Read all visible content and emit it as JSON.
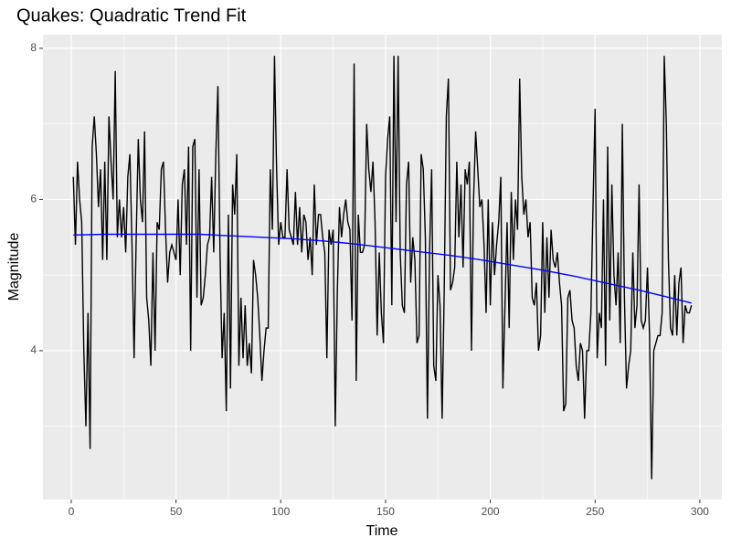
{
  "chart_data": {
    "type": "line",
    "title": "Quakes: Quadratic Trend Fit",
    "x_label": "Time",
    "y_label": "Magnitude",
    "xlim": [
      -13.5,
      310.5
    ],
    "ylim": [
      2.03,
      8.18
    ],
    "xticks": [
      0,
      50,
      100,
      150,
      200,
      250,
      300
    ],
    "yticks": [
      4,
      6,
      8
    ],
    "grid": true,
    "series": [
      {
        "color": "#000000",
        "x": [
          1,
          2,
          3,
          4,
          5,
          6,
          7,
          8,
          9,
          10,
          11,
          12,
          13,
          14,
          15,
          16,
          17,
          18,
          19,
          20,
          21,
          22,
          23,
          24,
          25,
          26,
          27,
          28,
          29,
          30,
          31,
          32,
          33,
          34,
          35,
          36,
          37,
          38,
          39,
          40,
          41,
          42,
          43,
          44,
          45,
          46,
          47,
          48,
          49,
          50,
          51,
          52,
          53,
          54,
          55,
          56,
          57,
          58,
          59,
          60,
          61,
          62,
          63,
          64,
          65,
          66,
          67,
          68,
          69,
          70,
          71,
          72,
          73,
          74,
          75,
          76,
          77,
          78,
          79,
          80,
          81,
          82,
          83,
          84,
          85,
          86,
          87,
          88,
          89,
          90,
          91,
          92,
          93,
          94,
          95,
          96,
          97,
          98,
          99,
          100,
          101,
          102,
          103,
          104,
          105,
          106,
          107,
          108,
          109,
          110,
          111,
          112,
          113,
          114,
          115,
          116,
          117,
          118,
          119,
          120,
          121,
          122,
          123,
          124,
          125,
          126,
          127,
          128,
          129,
          130,
          131,
          132,
          133,
          134,
          135,
          136,
          137,
          138,
          139,
          140,
          141,
          142,
          143,
          144,
          145,
          146,
          147,
          148,
          149,
          150,
          151,
          152,
          153,
          154,
          155,
          156,
          157,
          158,
          159,
          160,
          161,
          162,
          163,
          164,
          165,
          166,
          167,
          168,
          169,
          170,
          171,
          172,
          173,
          174,
          175,
          176,
          177,
          178,
          179,
          180,
          181,
          182,
          183,
          184,
          185,
          186,
          187,
          188,
          189,
          190,
          191,
          192,
          193,
          194,
          195,
          196,
          197,
          198,
          199,
          200,
          201,
          202,
          203,
          204,
          205,
          206,
          207,
          208,
          209,
          210,
          211,
          212,
          213,
          214,
          215,
          216,
          217,
          218,
          219,
          220,
          221,
          222,
          223,
          224,
          225,
          226,
          227,
          228,
          229,
          230,
          231,
          232,
          233,
          234,
          235,
          236,
          237,
          238,
          239,
          240,
          241,
          242,
          243,
          244,
          245,
          246,
          247,
          248,
          249,
          250,
          251,
          252,
          253,
          254,
          255,
          256,
          257,
          258,
          259,
          260,
          261,
          262,
          263,
          264,
          265,
          266,
          267,
          268,
          269,
          270,
          271,
          272,
          273,
          274,
          275,
          276,
          277,
          278,
          279,
          280,
          281,
          282,
          283,
          284,
          285,
          286,
          287,
          288,
          289,
          290,
          291,
          292,
          293,
          294,
          295,
          296
        ],
        "values": [
          6.3,
          5.4,
          6.5,
          6.0,
          5.7,
          4.0,
          3.0,
          4.5,
          2.7,
          6.7,
          7.1,
          6.6,
          5.9,
          6.4,
          5.2,
          6.5,
          5.2,
          7.1,
          6.5,
          6.0,
          7.7,
          5.5,
          6.0,
          5.5,
          5.9,
          5.3,
          6.3,
          6.6,
          5.4,
          3.9,
          5.5,
          6.8,
          6.0,
          5.7,
          6.9,
          4.7,
          4.4,
          3.8,
          5.3,
          4.0,
          5.7,
          5.6,
          6.4,
          6.5,
          5.6,
          4.9,
          5.3,
          5.4,
          5.3,
          5.2,
          6.0,
          5.0,
          6.2,
          6.4,
          5.4,
          6.7,
          4.0,
          6.7,
          6.8,
          4.7,
          6.4,
          4.6,
          4.7,
          5.0,
          5.4,
          5.5,
          6.3,
          5.3,
          6.6,
          7.5,
          5.3,
          3.9,
          4.5,
          3.2,
          5.8,
          3.5,
          6.2,
          5.8,
          6.6,
          3.8,
          4.7,
          3.9,
          4.6,
          3.8,
          4.1,
          3.7,
          5.2,
          5.0,
          4.7,
          4.2,
          3.6,
          4.0,
          4.3,
          4.3,
          6.4,
          5.6,
          7.9,
          6.4,
          5.4,
          5.7,
          5.5,
          5.5,
          6.4,
          5.6,
          5.5,
          5.4,
          6.1,
          5.4,
          5.9,
          5.3,
          5.8,
          5.7,
          5.2,
          5.5,
          5.0,
          6.2,
          5.4,
          5.8,
          5.8,
          5.5,
          5.3,
          3.9,
          5.6,
          5.4,
          5.6,
          3.0,
          4.8,
          5.9,
          5.5,
          5.8,
          6.0,
          5.7,
          5.6,
          4.4,
          7.8,
          3.6,
          5.8,
          5.3,
          5.3,
          5.4,
          7.0,
          6.4,
          6.1,
          6.5,
          5.7,
          4.2,
          5.3,
          4.5,
          4.1,
          6.3,
          6.8,
          7.1,
          4.6,
          7.9,
          5.7,
          7.9,
          5.3,
          4.6,
          4.5,
          6.2,
          6.5,
          4.9,
          5.5,
          5.2,
          4.1,
          4.2,
          6.6,
          6.4,
          5.5,
          3.1,
          5.3,
          6.4,
          3.8,
          3.6,
          5.0,
          4.6,
          3.1,
          4.8,
          7.1,
          7.6,
          4.8,
          4.9,
          5.1,
          6.5,
          5.5,
          6.2,
          5.1,
          6.4,
          6.2,
          6.5,
          4.0,
          6.0,
          6.9,
          6.4,
          5.9,
          6.0,
          5.4,
          4.5,
          6.0,
          4.6,
          5.7,
          5.0,
          5.4,
          5.7,
          6.3,
          3.5,
          4.6,
          5.7,
          4.3,
          6.1,
          5.2,
          6.0,
          5.6,
          7.6,
          6.3,
          5.8,
          6.0,
          5.5,
          5.7,
          4.7,
          4.6,
          4.9,
          4.0,
          4.2,
          5.7,
          4.5,
          5.5,
          4.7,
          5.6,
          5.2,
          5.1,
          5.3,
          4.9,
          4.6,
          3.2,
          3.3,
          4.7,
          4.8,
          4.4,
          4.3,
          3.8,
          3.6,
          4.1,
          4.0,
          3.1,
          4.0,
          4.0,
          4.5,
          5.9,
          7.2,
          3.9,
          4.5,
          4.3,
          6.0,
          3.8,
          6.7,
          4.4,
          6.2,
          5.0,
          4.6,
          5.3,
          4.1,
          7.0,
          4.7,
          3.5,
          3.8,
          4.0,
          5.3,
          4.3,
          4.6,
          6.2,
          4.4,
          4.3,
          4.4,
          5.1,
          4.2,
          2.3,
          4.0,
          4.1,
          4.2,
          4.2,
          4.5,
          7.9,
          7.0,
          5.2,
          4.3,
          4.2,
          5.0,
          4.2,
          4.9,
          5.1,
          4.1,
          4.6,
          4.5,
          4.5,
          4.6
        ]
      },
      {
        "color": "#0000ff",
        "x": [
          1,
          16,
          31,
          46,
          61,
          76,
          91,
          106,
          121,
          136,
          151,
          166,
          181,
          196,
          211,
          226,
          241,
          256,
          271,
          286,
          296
        ],
        "values": [
          5.53,
          5.54,
          5.54,
          5.54,
          5.54,
          5.52,
          5.5,
          5.48,
          5.45,
          5.41,
          5.36,
          5.31,
          5.26,
          5.2,
          5.13,
          5.06,
          4.98,
          4.89,
          4.8,
          4.7,
          4.63
        ]
      }
    ]
  }
}
